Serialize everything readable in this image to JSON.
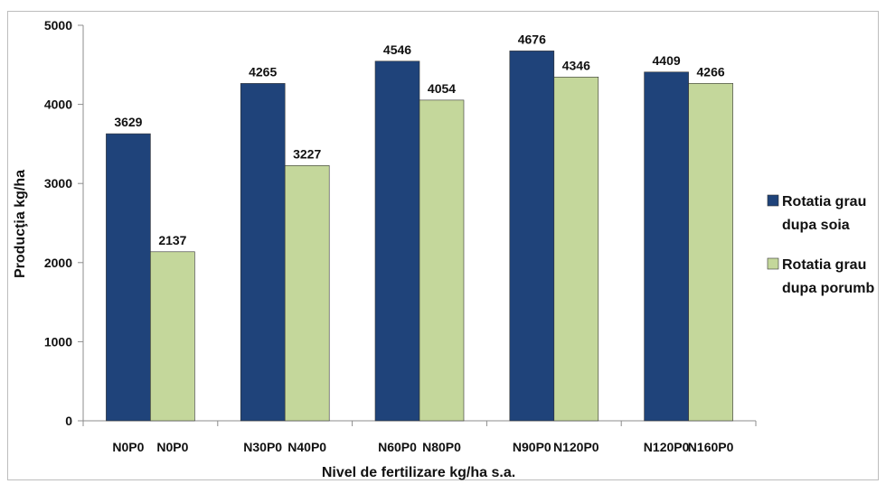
{
  "chart_data": {
    "type": "bar",
    "title": "",
    "xlabel": "Nivel de fertilizare kg/ha s.a.",
    "ylabel": "Producţia kg/ha",
    "ylim": [
      0,
      5000
    ],
    "yticks": [
      "0",
      "1000",
      "2000",
      "3000",
      "4000",
      "5000"
    ],
    "grid": false,
    "legend_position": "right",
    "groups": [
      {
        "labels": [
          "N0P0",
          "N0P0"
        ]
      },
      {
        "labels": [
          "N30P0",
          "N40P0"
        ]
      },
      {
        "labels": [
          "N60P0",
          "N80P0"
        ]
      },
      {
        "labels": [
          "N90P0",
          "N120P0"
        ]
      },
      {
        "labels": [
          "N120P0",
          "N160P0"
        ]
      }
    ],
    "series": [
      {
        "name_lines": [
          "Rotatia grau",
          "dupa soia"
        ],
        "color": "#1f437a",
        "values": [
          3629,
          4265,
          4546,
          4676,
          4409
        ]
      },
      {
        "name_lines": [
          "Rotatia grau",
          "dupa porumb"
        ],
        "color": "#c4d79b",
        "values": [
          2137,
          3227,
          4054,
          4346,
          4266
        ]
      }
    ]
  }
}
